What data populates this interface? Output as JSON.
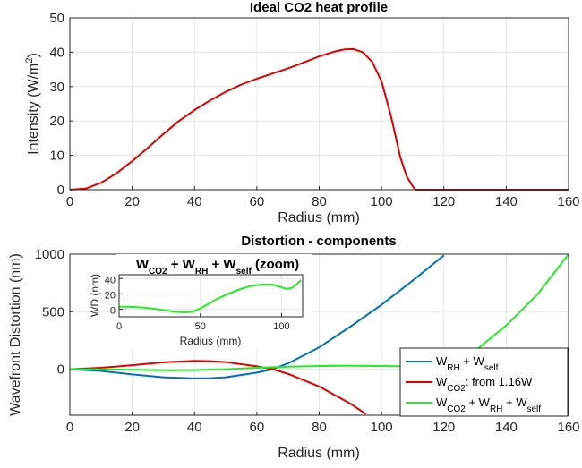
{
  "chart_data": [
    {
      "type": "line",
      "title": "Ideal CO2 heat profile",
      "xlabel": "Radius (mm)",
      "ylabel_main": "Intensity (W/m",
      "ylabel_sup": "2",
      "ylabel_end": ")",
      "xlim": [
        0,
        160
      ],
      "ylim": [
        0,
        50
      ],
      "xticks": [
        0,
        20,
        40,
        60,
        80,
        100,
        120,
        140,
        160
      ],
      "yticks": [
        0,
        10,
        20,
        30,
        40,
        50
      ],
      "grid": true,
      "series": [
        {
          "color": "#e00000",
          "x": [
            0,
            5,
            10,
            15,
            20,
            25,
            30,
            35,
            40,
            45,
            50,
            55,
            60,
            65,
            70,
            75,
            80,
            85,
            88,
            91,
            94,
            97,
            100,
            103,
            106,
            108,
            110,
            111,
            115,
            120,
            130,
            140,
            150,
            160
          ],
          "y": [
            0,
            0.3,
            2.0,
            4.8,
            8.3,
            12.2,
            16.2,
            20.0,
            23.2,
            26.0,
            28.5,
            30.6,
            32.3,
            33.8,
            35.3,
            37.0,
            38.8,
            40.2,
            40.8,
            40.9,
            40.0,
            37.2,
            31.5,
            21.5,
            9.5,
            4.0,
            1.0,
            0,
            0,
            0,
            0,
            0,
            0,
            0
          ]
        }
      ]
    },
    {
      "type": "line",
      "title": "Distortion - components",
      "xlabel": "Radius (mm)",
      "ylabel": "Wavefront Distortion (nm)",
      "xlim": [
        0,
        160
      ],
      "ylim": [
        -400,
        1000
      ],
      "xticks": [
        0,
        20,
        40,
        60,
        80,
        100,
        120,
        140,
        160
      ],
      "yticks": [
        0,
        500,
        1000
      ],
      "grid": true,
      "legend_position": "bottom-right",
      "series": [
        {
          "legend": {
            "main": "W",
            "sub": "RH",
            "mid": " + W",
            "sub2": "self",
            "end": ""
          },
          "color": "#0072bd",
          "x": [
            0,
            10,
            20,
            30,
            40,
            45,
            50,
            60,
            65,
            70,
            80,
            90,
            100,
            110,
            120
          ],
          "y": [
            0,
            -15,
            -45,
            -70,
            -80,
            -78,
            -70,
            -30,
            0,
            50,
            190,
            370,
            560,
            770,
            990
          ]
        },
        {
          "legend": {
            "main": "W",
            "sub": "CO2",
            "mid": ": from 1.16W",
            "sub2": "",
            "end": ""
          },
          "color": "#e00000",
          "x": [
            0,
            10,
            20,
            30,
            40,
            45,
            50,
            60,
            65,
            70,
            80,
            90,
            95
          ],
          "y": [
            0,
            12,
            35,
            60,
            72,
            70,
            62,
            25,
            0,
            -40,
            -150,
            -300,
            -390
          ]
        },
        {
          "legend": {
            "main": "W",
            "sub": "CO2",
            "mid": " + W",
            "sub2": "RH",
            "end": " + W",
            "sub3": "self"
          },
          "color": "#22ee22",
          "x": [
            0,
            10,
            20,
            30,
            40,
            50,
            60,
            70,
            80,
            90,
            100,
            110,
            115,
            120,
            125,
            130,
            140,
            150,
            160
          ],
          "y": [
            0,
            -2,
            -6,
            -9,
            -8,
            0,
            12,
            22,
            28,
            30,
            28,
            24,
            22,
            28,
            70,
            160,
            380,
            650,
            1000
          ]
        }
      ],
      "inset": {
        "title_parts": [
          "W",
          "CO2",
          " + W",
          "RH",
          " + W",
          "self",
          " (zoom)"
        ],
        "xlabel": "Radius (mm)",
        "ylabel": "WD (nm)",
        "xlim": [
          0,
          113
        ],
        "ylim": [
          -10,
          45
        ],
        "xticks": [
          0,
          50,
          100
        ],
        "yticks": [
          0,
          20,
          40
        ],
        "color": "#22ee22",
        "x": [
          0,
          5,
          10,
          15,
          20,
          25,
          30,
          35,
          40,
          45,
          50,
          55,
          60,
          65,
          70,
          75,
          80,
          85,
          90,
          95,
          100,
          103,
          106,
          109,
          112
        ],
        "y": [
          3.2,
          3.2,
          2.8,
          2.2,
          1.0,
          -0.5,
          -2.0,
          -3.5,
          -4.2,
          -3.5,
          1.0,
          7.0,
          13.0,
          18.0,
          22.5,
          26.5,
          29.5,
          31.5,
          32.5,
          32.0,
          28.5,
          26.5,
          27.5,
          32.0,
          38.0
        ]
      }
    }
  ]
}
